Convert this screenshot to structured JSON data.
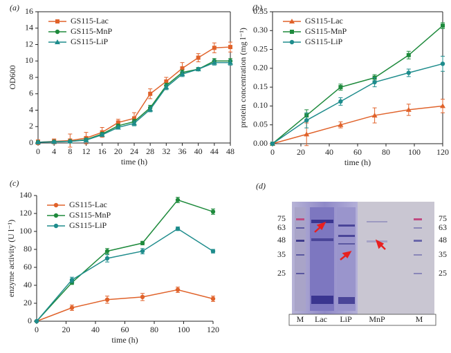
{
  "chart_data": [
    {
      "type": "line",
      "panel": "(a)",
      "xlabel": "time (h)",
      "ylabel": "OD600",
      "box": true,
      "legend": "upper left",
      "x": [
        0,
        4,
        8,
        12,
        16,
        20,
        24,
        28,
        32,
        36,
        40,
        44,
        48
      ],
      "xlim": [
        0,
        48
      ],
      "xticks": [
        0,
        4,
        8,
        12,
        16,
        20,
        24,
        28,
        32,
        36,
        40,
        44,
        48
      ],
      "ylim": [
        0,
        16
      ],
      "yticks": [
        0,
        2,
        4,
        6,
        8,
        10,
        12,
        14,
        16
      ],
      "series": [
        {
          "name": "GS115-Lac",
          "color": "#e0622a",
          "marker": "square",
          "values": [
            0.1,
            0.2,
            0.3,
            0.6,
            1.3,
            2.5,
            3.0,
            6.0,
            7.5,
            9.1,
            10.4,
            11.6,
            11.7
          ],
          "errors": [
            0.3,
            0.3,
            0.8,
            0.7,
            0.6,
            0.4,
            0.7,
            0.6,
            0.5,
            0.7,
            0.5,
            0.6,
            0.6
          ]
        },
        {
          "name": "GS115-MnP",
          "color": "#1e8a3c",
          "marker": "circle",
          "values": [
            0.1,
            0.15,
            0.2,
            0.4,
            1.1,
            2.1,
            2.6,
            4.3,
            7.0,
            8.6,
            9.0,
            10.0,
            10.0
          ],
          "errors": [
            0.1,
            0.1,
            0.1,
            0.2,
            0.2,
            0.2,
            0.3,
            0.3,
            0.3,
            0.3,
            0.2,
            0.3,
            0.3
          ]
        },
        {
          "name": "GS115-LiP",
          "color": "#1e8c8c",
          "marker": "triangle",
          "values": [
            0.1,
            0.15,
            0.2,
            0.35,
            1.0,
            1.9,
            2.4,
            4.1,
            6.8,
            8.4,
            9.0,
            9.8,
            9.8
          ],
          "errors": [
            0.1,
            0.1,
            0.1,
            0.2,
            0.2,
            0.2,
            0.3,
            0.3,
            0.3,
            0.3,
            0.2,
            0.3,
            0.3
          ]
        }
      ]
    },
    {
      "type": "line",
      "panel": "(b)",
      "xlabel": "time (h)",
      "ylabel": "protein concentration (mg l⁻¹)",
      "box": true,
      "legend": "upper left",
      "x": [
        0,
        24,
        48,
        72,
        96,
        120
      ],
      "xlim": [
        0,
        120
      ],
      "xticks": [
        0,
        20,
        40,
        60,
        80,
        100,
        120
      ],
      "ylim": [
        0,
        0.35
      ],
      "yticks": [
        {
          "value": 0,
          "label": "0.00"
        },
        {
          "value": 0.05,
          "label": "0.05"
        },
        {
          "value": 0.1,
          "label": "0.10"
        },
        {
          "value": 0.15,
          "label": "0.15"
        },
        {
          "value": 0.2,
          "label": "0.20"
        },
        {
          "value": 0.25,
          "label": "0.25"
        },
        {
          "value": 0.3,
          "label": "0.30"
        },
        {
          "value": 0.35,
          "label": "0.35"
        }
      ],
      "series": [
        {
          "name": "GS115-Lac",
          "color": "#e0622a",
          "marker": "triangle",
          "values": [
            0,
            0.025,
            0.05,
            0.075,
            0.09,
            0.1
          ],
          "errors": [
            0,
            0.03,
            0.008,
            0.02,
            0.015,
            0.018
          ]
        },
        {
          "name": "GS115-MnP",
          "color": "#1e8a3c",
          "marker": "square",
          "values": [
            0,
            0.075,
            0.15,
            0.175,
            0.235,
            0.313
          ],
          "errors": [
            0,
            0.015,
            0.008,
            0.008,
            0.01,
            0.008
          ]
        },
        {
          "name": "GS115-LiP",
          "color": "#1e8c8c",
          "marker": "circle",
          "values": [
            0,
            0.062,
            0.112,
            0.163,
            0.188,
            0.212
          ],
          "errors": [
            0,
            0.02,
            0.01,
            0.012,
            0.01,
            0.02
          ]
        }
      ]
    },
    {
      "type": "line",
      "panel": "(c)",
      "xlabel": "time (h)",
      "ylabel": "enzyme activity (U l⁻¹)",
      "box": false,
      "legend": "upper left",
      "x": [
        0,
        24,
        48,
        72,
        96,
        120
      ],
      "xlim": [
        0,
        120
      ],
      "xticks": [
        0,
        20,
        40,
        60,
        80,
        100,
        120
      ],
      "ylim": [
        0,
        140
      ],
      "yticks": [
        0,
        20,
        40,
        60,
        80,
        100,
        120,
        140
      ],
      "series": [
        {
          "name": "GS115-Lac",
          "color": "#e0622a",
          "marker": "circle",
          "values": [
            0,
            15,
            24,
            27,
            35,
            25
          ],
          "errors": [
            0,
            3,
            4,
            4,
            3,
            3
          ]
        },
        {
          "name": "GS115-MnP",
          "color": "#1e8a3c",
          "marker": "circle",
          "values": [
            0,
            43,
            78,
            87,
            135,
            122
          ],
          "errors": [
            0,
            2,
            3,
            2,
            3,
            3
          ]
        },
        {
          "name": "GS115-LiP",
          "color": "#1e8c8c",
          "marker": "circle",
          "values": [
            0,
            46,
            70,
            78,
            103,
            78
          ],
          "errors": [
            0,
            3,
            4,
            3,
            2,
            2
          ]
        }
      ]
    }
  ],
  "gel": {
    "panel": "(d)",
    "lanes": [
      "M",
      "Lac",
      "LiP",
      "MnP",
      "M"
    ],
    "markers_left": [
      75,
      63,
      48,
      35,
      25
    ],
    "markers_right": [
      75,
      63,
      48,
      35,
      25
    ]
  }
}
